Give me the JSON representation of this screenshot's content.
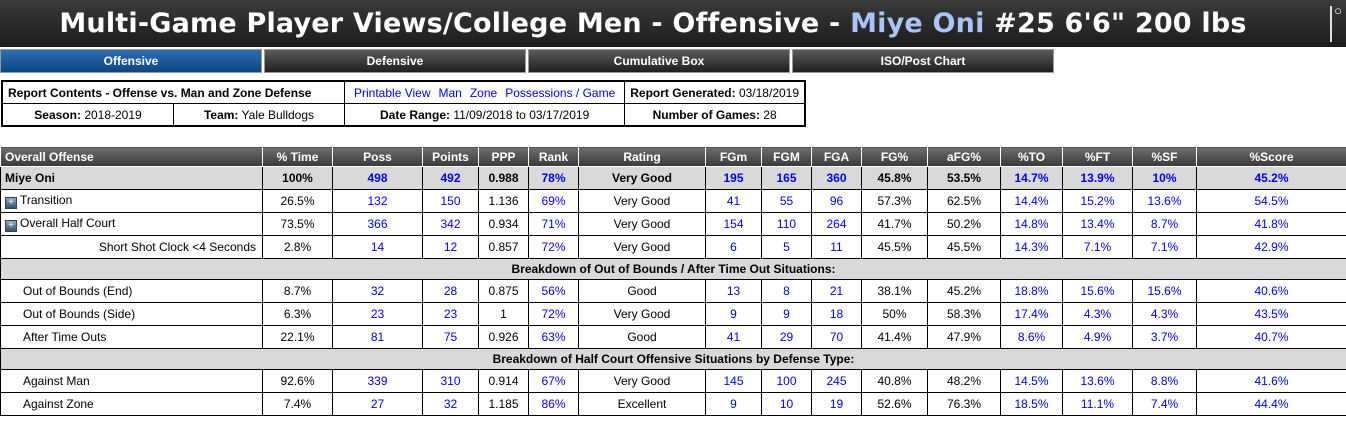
{
  "header": {
    "title_prefix": "Multi-Game Player Views/College Men - Offensive - ",
    "player_name": "Miye Oni",
    "title_suffix": " #25 6'6\" 200 lbs"
  },
  "tabs": [
    {
      "label": "Offensive"
    },
    {
      "label": "Defensive"
    },
    {
      "label": "Cumulative Box"
    },
    {
      "label": "ISO/Post Chart"
    }
  ],
  "info": {
    "report_contents": "Report Contents - Offense vs. Man and Zone Defense",
    "links": [
      "Printable View",
      "Man",
      "Zone",
      "Possessions / Game"
    ],
    "report_generated_label": "Report Generated:",
    "report_generated": "03/18/2019",
    "season_label": "Season:",
    "season": "2018-2019",
    "team_label": "Team:",
    "team": "Yale Bulldogs",
    "date_range_label": "Date Range:",
    "date_range": "11/09/2018 to 03/17/2019",
    "games_label": "Number of Games:",
    "games": "28"
  },
  "stats": {
    "columns": [
      "Overall Offense",
      "% Time",
      "Poss",
      "Points",
      "PPP",
      "Rank",
      "Rating",
      "FGm",
      "FGM",
      "FGA",
      "FG%",
      "aFG%",
      "%TO",
      "%FT",
      "%SF",
      "%Score"
    ],
    "main_row": [
      "Miye Oni",
      "100%",
      "498",
      "492",
      "0.988",
      "78%",
      "Very Good",
      "195",
      "165",
      "360",
      "45.8%",
      "53.5%",
      "14.7%",
      "13.9%",
      "10%",
      "45.2%"
    ],
    "rows_a": [
      [
        "Transition",
        "26.5%",
        "132",
        "150",
        "1.136",
        "69%",
        "Very Good",
        "41",
        "55",
        "96",
        "57.3%",
        "62.5%",
        "14.4%",
        "15.2%",
        "13.6%",
        "54.5%"
      ],
      [
        "Overall Half Court",
        "73.5%",
        "366",
        "342",
        "0.934",
        "71%",
        "Very Good",
        "154",
        "110",
        "264",
        "41.7%",
        "50.2%",
        "14.8%",
        "13.4%",
        "8.7%",
        "41.8%"
      ],
      [
        "Short Shot Clock <4 Seconds",
        "2.8%",
        "14",
        "12",
        "0.857",
        "72%",
        "Very Good",
        "6",
        "5",
        "11",
        "45.5%",
        "45.5%",
        "14.3%",
        "7.1%",
        "7.1%",
        "42.9%"
      ]
    ],
    "section_1": "Breakdown of Out of Bounds / After Time Out Situations:",
    "rows_b": [
      [
        "Out of Bounds (End)",
        "8.7%",
        "32",
        "28",
        "0.875",
        "56%",
        "Good",
        "13",
        "8",
        "21",
        "38.1%",
        "45.2%",
        "18.8%",
        "15.6%",
        "15.6%",
        "40.6%"
      ],
      [
        "Out of Bounds (Side)",
        "6.3%",
        "23",
        "23",
        "1",
        "72%",
        "Very Good",
        "9",
        "9",
        "18",
        "50%",
        "58.3%",
        "17.4%",
        "4.3%",
        "4.3%",
        "43.5%"
      ],
      [
        "After Time Outs",
        "22.1%",
        "81",
        "75",
        "0.926",
        "63%",
        "Good",
        "41",
        "29",
        "70",
        "41.4%",
        "47.9%",
        "8.6%",
        "4.9%",
        "3.7%",
        "40.7%"
      ]
    ],
    "section_2": "Breakdown of Half Court Offensive Situations by Defense Type:",
    "rows_c": [
      [
        "Against Man",
        "92.6%",
        "339",
        "310",
        "0.914",
        "67%",
        "Very Good",
        "145",
        "100",
        "245",
        "40.8%",
        "48.2%",
        "14.5%",
        "13.6%",
        "8.8%",
        "41.6%"
      ],
      [
        "Against Zone",
        "7.4%",
        "27",
        "32",
        "1.185",
        "86%",
        "Excellent",
        "9",
        "10",
        "19",
        "52.6%",
        "76.3%",
        "18.5%",
        "11.1%",
        "7.4%",
        "44.4%"
      ]
    ]
  },
  "colors": {
    "link": "#0000ee",
    "active_tab": "#2d6fb3",
    "player_name": "#a9c4f5"
  }
}
